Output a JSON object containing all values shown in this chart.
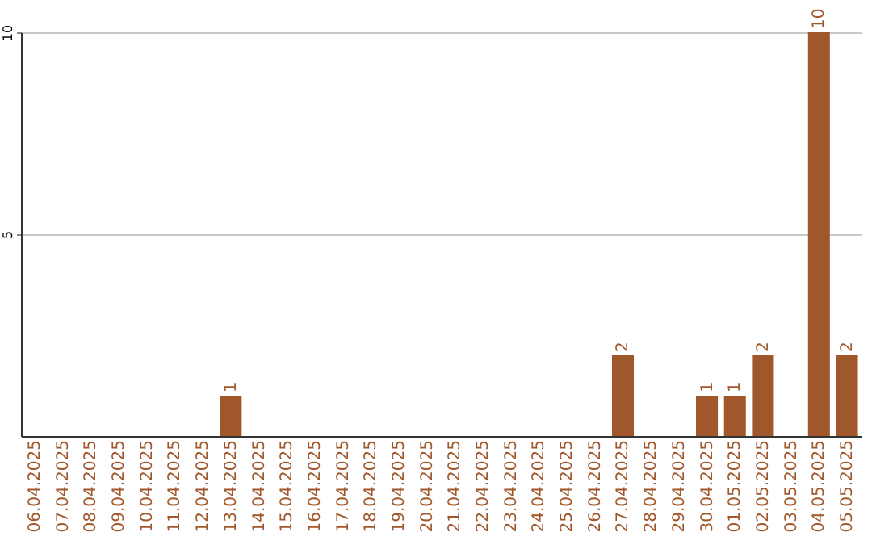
{
  "chart_data": {
    "type": "bar",
    "categories": [
      "06.04.2025",
      "07.04.2025",
      "08.04.2025",
      "09.04.2025",
      "10.04.2025",
      "11.04.2025",
      "12.04.2025",
      "13.04.2025",
      "14.04.2025",
      "15.04.2025",
      "16.04.2025",
      "17.04.2025",
      "18.04.2025",
      "19.04.2025",
      "20.04.2025",
      "21.04.2025",
      "22.04.2025",
      "23.04.2025",
      "24.04.2025",
      "25.04.2025",
      "26.04.2025",
      "27.04.2025",
      "28.04.2025",
      "29.04.2025",
      "30.04.2025",
      "01.05.2025",
      "02.05.2025",
      "03.05.2025",
      "04.05.2025",
      "05.05.2025"
    ],
    "values": [
      0,
      0,
      0,
      0,
      0,
      0,
      0,
      1,
      0,
      0,
      0,
      0,
      0,
      0,
      0,
      0,
      0,
      0,
      0,
      0,
      0,
      2,
      0,
      0,
      1,
      1,
      2,
      0,
      10,
      2
    ],
    "value_labels": [
      null,
      null,
      null,
      null,
      null,
      null,
      null,
      "1",
      null,
      null,
      null,
      null,
      null,
      null,
      null,
      null,
      null,
      null,
      null,
      null,
      null,
      "2",
      null,
      null,
      "1",
      "1",
      "2",
      null,
      "10",
      "2"
    ],
    "color": "#a0572b",
    "ylim": [
      0,
      10
    ],
    "yticks": [
      5,
      10
    ],
    "grid": "y"
  }
}
